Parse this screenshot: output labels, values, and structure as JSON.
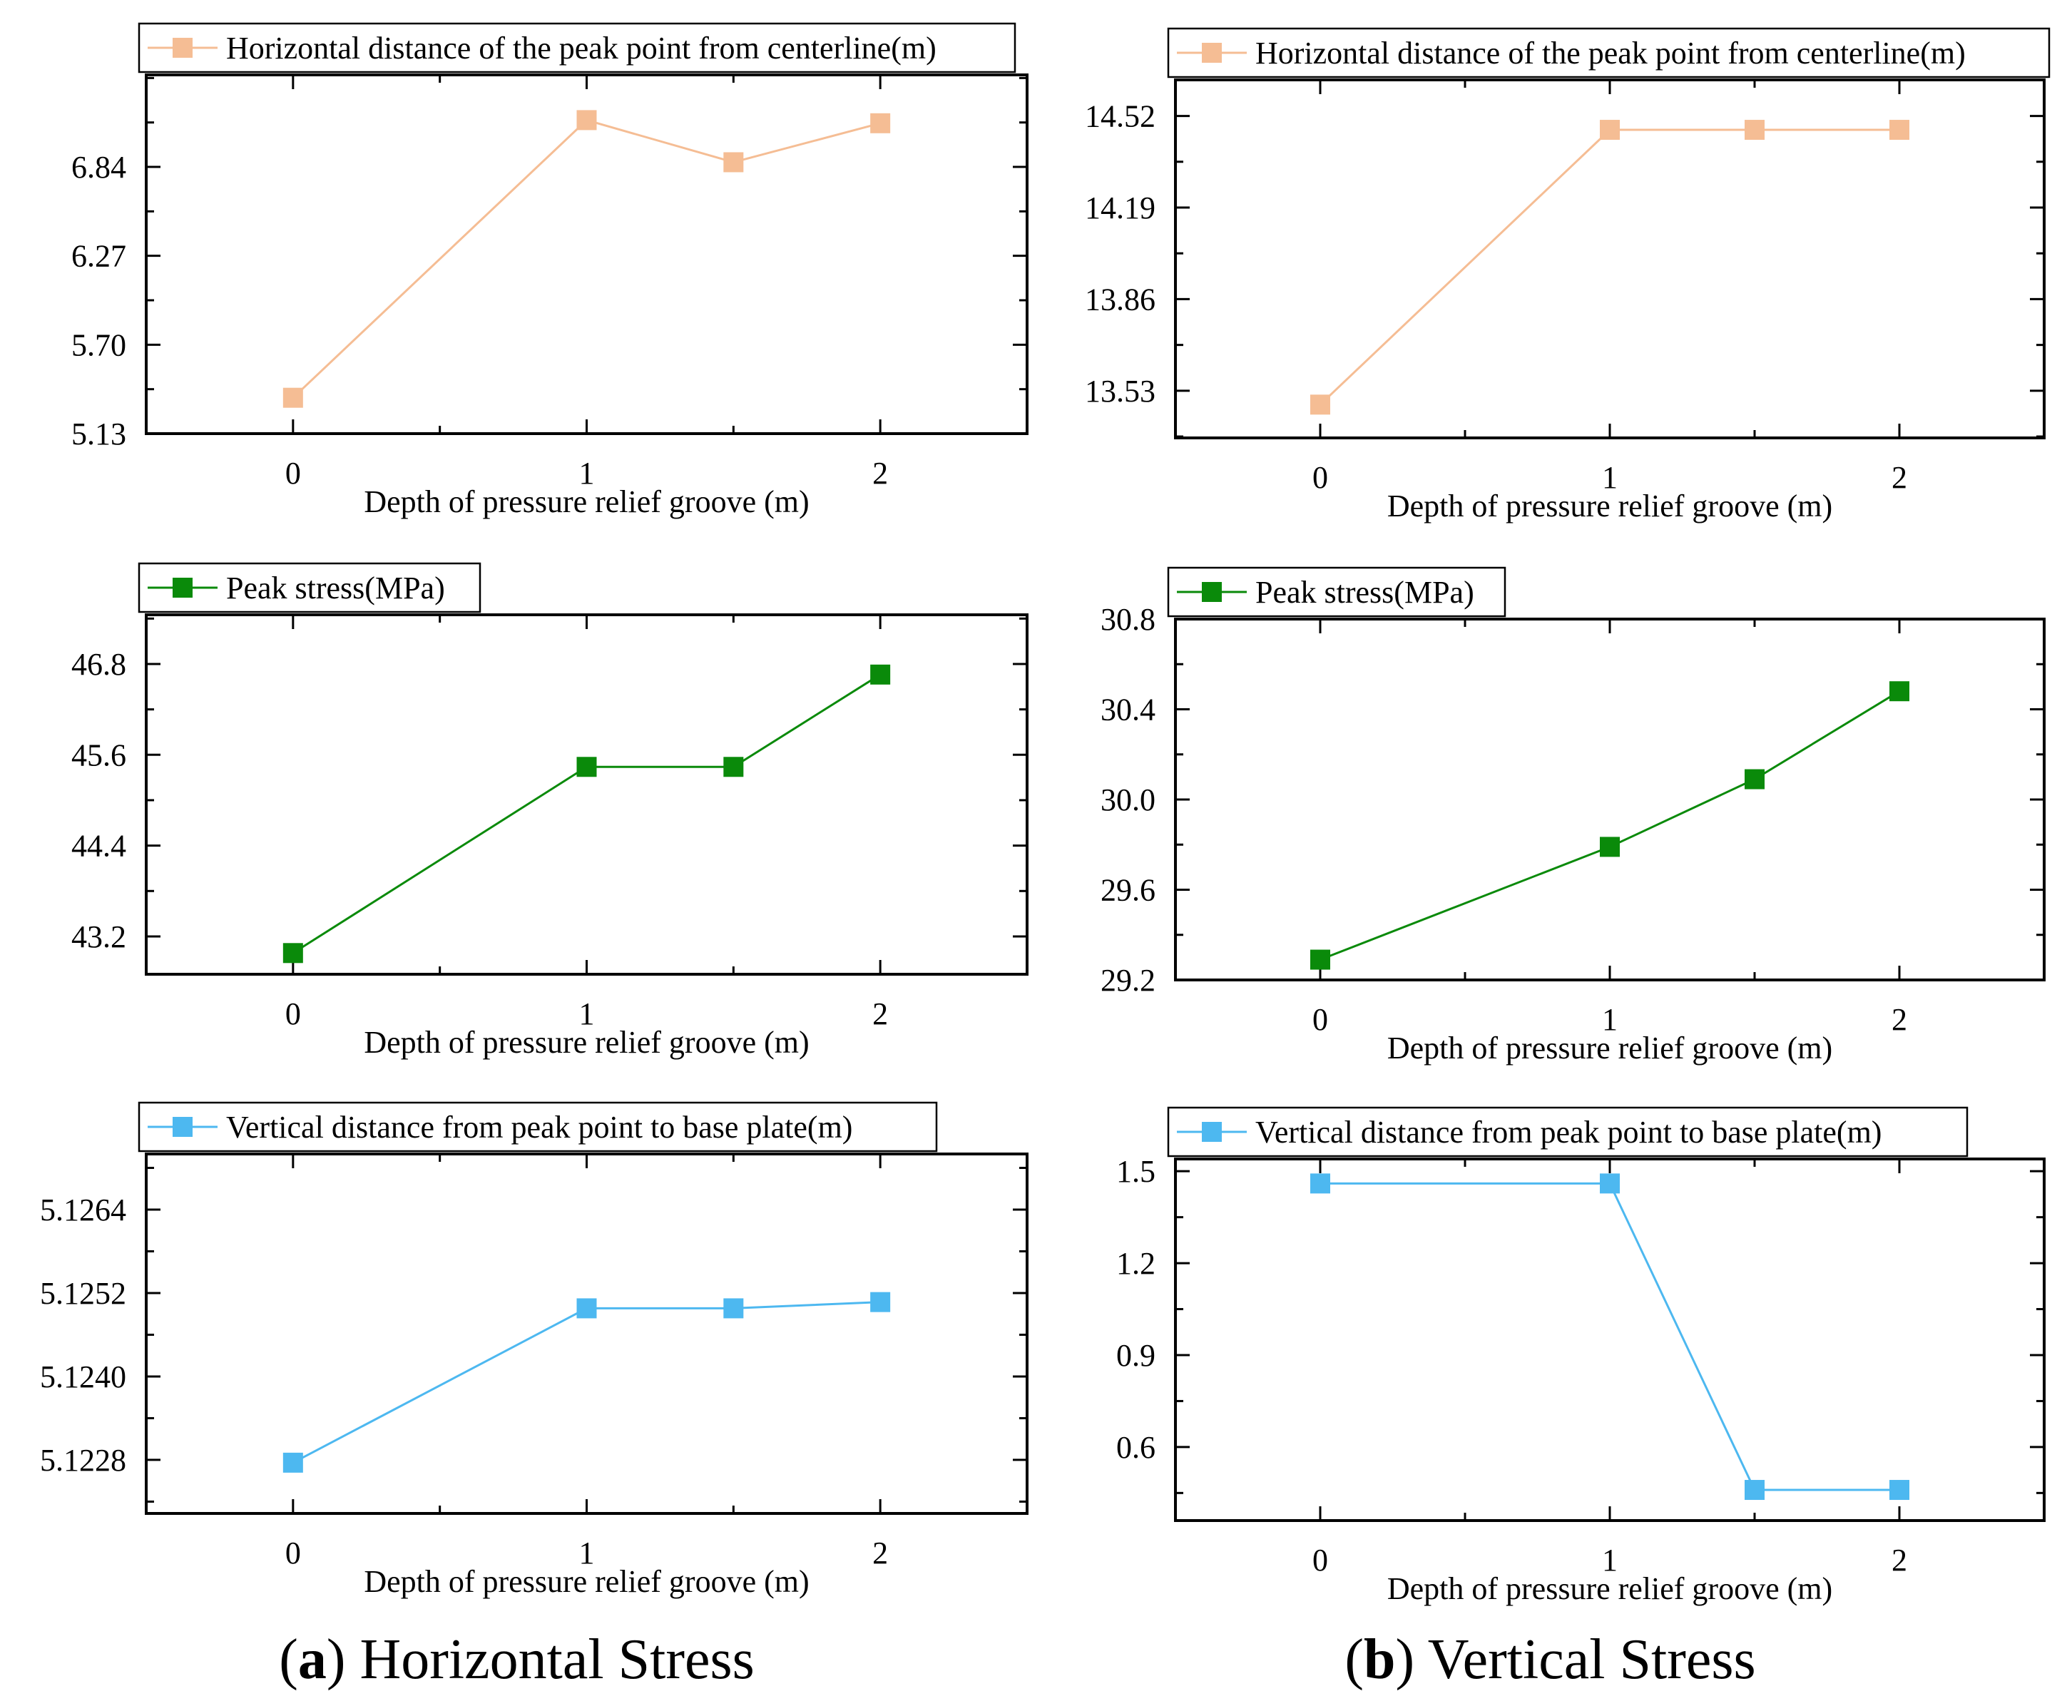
{
  "captions": [
    {
      "letter": "a",
      "text": "Horizontal Stress"
    },
    {
      "letter": "b",
      "text": "Vertical Stress"
    }
  ],
  "colors": {
    "orange": "#F5BD94",
    "green": "#0A8A0A",
    "blue": "#4DB8F0",
    "axis": "#000000"
  },
  "chart_data": [
    {
      "id": "a1",
      "type": "line",
      "column": "a",
      "title": "",
      "xlabel": "Depth of pressure relief groove (m)",
      "ylabel": "",
      "x": [
        0,
        1,
        1.5,
        2
      ],
      "xticks": [
        0,
        1,
        2
      ],
      "xtick_labels": [
        "0",
        "1",
        "2"
      ],
      "xlim": [
        -0.5,
        2.5
      ],
      "yticks": [
        5.13,
        5.7,
        6.27,
        6.84
      ],
      "ytick_labels": [
        "5.13",
        "5.70",
        "6.27",
        "6.84"
      ],
      "ylim": [
        5.13,
        7.43
      ],
      "series": [
        {
          "name": "Horizontal distance of the peak point from centerline(m)",
          "values": [
            5.36,
            7.14,
            6.87,
            7.12
          ],
          "color": "#F5BD94"
        }
      ],
      "legend": "top-left",
      "grid": false
    },
    {
      "id": "a2",
      "type": "line",
      "column": "a",
      "title": "",
      "xlabel": "Depth of pressure relief groove (m)",
      "ylabel": "",
      "x": [
        0,
        1,
        1.5,
        2
      ],
      "xticks": [
        0,
        1,
        2
      ],
      "xtick_labels": [
        "0",
        "1",
        "2"
      ],
      "xlim": [
        -0.5,
        2.5
      ],
      "yticks": [
        43.2,
        44.4,
        45.6,
        46.8
      ],
      "ytick_labels": [
        "43.2",
        "44.4",
        "45.6",
        "46.8"
      ],
      "ylim": [
        42.7,
        47.45
      ],
      "series": [
        {
          "name": "Peak stress(MPa)",
          "values": [
            42.98,
            45.44,
            45.44,
            46.66
          ],
          "color": "#0A8A0A"
        }
      ],
      "legend": "top-left",
      "grid": false
    },
    {
      "id": "a3",
      "type": "line",
      "column": "a",
      "title": "",
      "xlabel": "Depth of pressure relief groove (m)",
      "ylabel": "",
      "x": [
        0,
        1,
        1.5,
        2
      ],
      "xticks": [
        0,
        1,
        2
      ],
      "xtick_labels": [
        "0",
        "1",
        "2"
      ],
      "xlim": [
        -0.5,
        2.5
      ],
      "yticks": [
        5.1228,
        5.124,
        5.1252,
        5.1264
      ],
      "ytick_labels": [
        "5.1228",
        "5.1240",
        "5.1252",
        "5.1264"
      ],
      "ylim": [
        5.12203,
        5.1272
      ],
      "series": [
        {
          "name": "Vertical distance from peak point to base plate(m)",
          "values": [
            5.12276,
            5.12498,
            5.12498,
            5.12507
          ],
          "color": "#4DB8F0"
        }
      ],
      "legend": "top-left",
      "grid": false
    },
    {
      "id": "b1",
      "type": "line",
      "column": "b",
      "title": "",
      "xlabel": "Depth of pressure relief groove (m)",
      "ylabel": "",
      "x": [
        0,
        1,
        1.5,
        2
      ],
      "xticks": [
        0,
        1,
        2
      ],
      "xtick_labels": [
        "0",
        "1",
        "2"
      ],
      "xlim": [
        -0.5,
        2.5
      ],
      "yticks": [
        13.53,
        13.86,
        14.19,
        14.52
      ],
      "ytick_labels": [
        "13.53",
        "13.86",
        "14.19",
        "14.52"
      ],
      "ylim": [
        13.36,
        14.65
      ],
      "series": [
        {
          "name": "Horizontal distance of the peak point from centerline(m)",
          "values": [
            13.48,
            14.47,
            14.47,
            14.47
          ],
          "color": "#F5BD94"
        }
      ],
      "legend": "top-left",
      "grid": false
    },
    {
      "id": "b2",
      "type": "line",
      "column": "b",
      "title": "",
      "xlabel": "Depth of pressure relief groove (m)",
      "ylabel": "",
      "x": [
        0,
        1,
        1.5,
        2
      ],
      "xticks": [
        0,
        1,
        2
      ],
      "xtick_labels": [
        "0",
        "1",
        "2"
      ],
      "xlim": [
        -0.5,
        2.5
      ],
      "yticks": [
        29.2,
        29.6,
        30.0,
        30.4,
        30.8
      ],
      "ytick_labels": [
        "29.2",
        "29.6",
        "30.0",
        "30.4",
        "30.8"
      ],
      "ylim": [
        29.2,
        30.8
      ],
      "series": [
        {
          "name": "Peak stress(MPa)",
          "values": [
            29.29,
            29.79,
            30.09,
            30.48
          ],
          "color": "#0A8A0A"
        }
      ],
      "legend": "top-left",
      "grid": false
    },
    {
      "id": "b3",
      "type": "line",
      "column": "b",
      "title": "",
      "xlabel": "Depth of pressure relief groove (m)",
      "ylabel": "",
      "x": [
        0,
        1,
        1.5,
        2
      ],
      "xticks": [
        0,
        1,
        2
      ],
      "xtick_labels": [
        "0",
        "1",
        "2"
      ],
      "xlim": [
        -0.5,
        2.5
      ],
      "yticks": [
        0.6,
        0.9,
        1.2,
        1.5
      ],
      "ytick_labels": [
        "0.6",
        "0.9",
        "1.2",
        "1.5"
      ],
      "ylim": [
        0.36,
        1.54
      ],
      "series": [
        {
          "name": "Vertical distance from peak point to base plate(m)",
          "values": [
            1.46,
            1.46,
            0.46,
            0.46
          ],
          "color": "#4DB8F0"
        }
      ],
      "legend": "top-left",
      "grid": false
    }
  ]
}
